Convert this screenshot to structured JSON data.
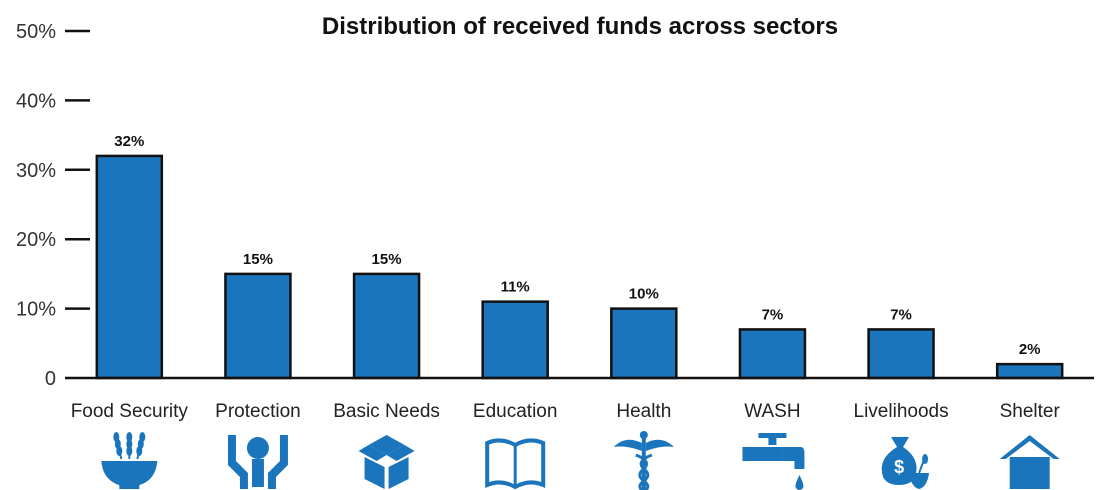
{
  "chart_data": {
    "type": "bar",
    "title": "Distribution of received funds across sectors",
    "categories": [
      "Food Security",
      "Protection",
      "Basic Needs",
      "Education",
      "Health",
      "WASH",
      "Livelihoods",
      "Shelter"
    ],
    "values": [
      32,
      15,
      15,
      11,
      10,
      7,
      7,
      2
    ],
    "data_labels": [
      "32%",
      "15%",
      "15%",
      "11%",
      "10%",
      "7%",
      "7%",
      "2%"
    ],
    "ylim": [
      0,
      50
    ],
    "yticks": [
      0,
      10,
      20,
      30,
      40,
      50
    ],
    "ytick_labels": [
      "0",
      "10%",
      "20%",
      "30%",
      "40%",
      "50%"
    ],
    "xlabel": "",
    "ylabel": "",
    "grid": false,
    "bar_color": "#1b75bc",
    "icons": [
      "food-bowl-wheat-icon",
      "hands-person-icon",
      "open-box-icon",
      "open-book-icon",
      "caduceus-icon",
      "water-tap-icon",
      "money-bag-plant-icon",
      "house-icon"
    ]
  }
}
